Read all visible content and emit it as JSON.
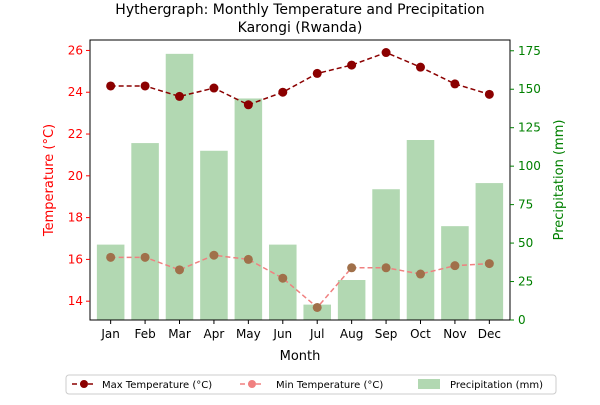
{
  "chart_data": {
    "type": "bar+line",
    "title_line1": "Hythergraph: Monthly Temperature and Precipitation",
    "title_line2": "Karongi (Rwanda)",
    "xlabel": "Month",
    "ylabel_left": "Temperature (°C)",
    "ylabel_right": "Precipitation (mm)",
    "categories": [
      "Jan",
      "Feb",
      "Mar",
      "Apr",
      "May",
      "Jun",
      "Jul",
      "Aug",
      "Sep",
      "Oct",
      "Nov",
      "Dec"
    ],
    "y_left_lim": [
      13.1,
      26.5
    ],
    "y_left_ticks": [
      14,
      16,
      18,
      20,
      22,
      24,
      26
    ],
    "y_right_lim": [
      0,
      182
    ],
    "y_right_ticks": [
      0,
      25,
      50,
      75,
      100,
      125,
      150,
      175
    ],
    "series": [
      {
        "name": "Max Temperature (°C)",
        "axis": "left",
        "kind": "line",
        "color": "#8b0000",
        "values": [
          24.3,
          24.3,
          23.8,
          24.2,
          23.4,
          24.0,
          24.9,
          25.3,
          25.9,
          25.2,
          24.4,
          23.9
        ]
      },
      {
        "name": "Min Temperature (°C)",
        "axis": "left",
        "kind": "line",
        "color": "#f08080",
        "values": [
          16.1,
          16.1,
          15.5,
          16.2,
          16.0,
          15.1,
          13.7,
          15.6,
          15.6,
          15.3,
          15.7,
          15.8
        ]
      },
      {
        "name": "Precipitation (mm)",
        "axis": "right",
        "kind": "bar",
        "color": "#b2d8b2",
        "values": [
          49,
          115,
          173,
          110,
          144,
          49,
          10,
          26,
          85,
          117,
          61,
          89
        ]
      }
    ],
    "colors": {
      "left_axis": "#ff0000",
      "right_axis": "#008000",
      "min_marker": "#a0704a"
    },
    "legend_position": "bottom-center"
  }
}
